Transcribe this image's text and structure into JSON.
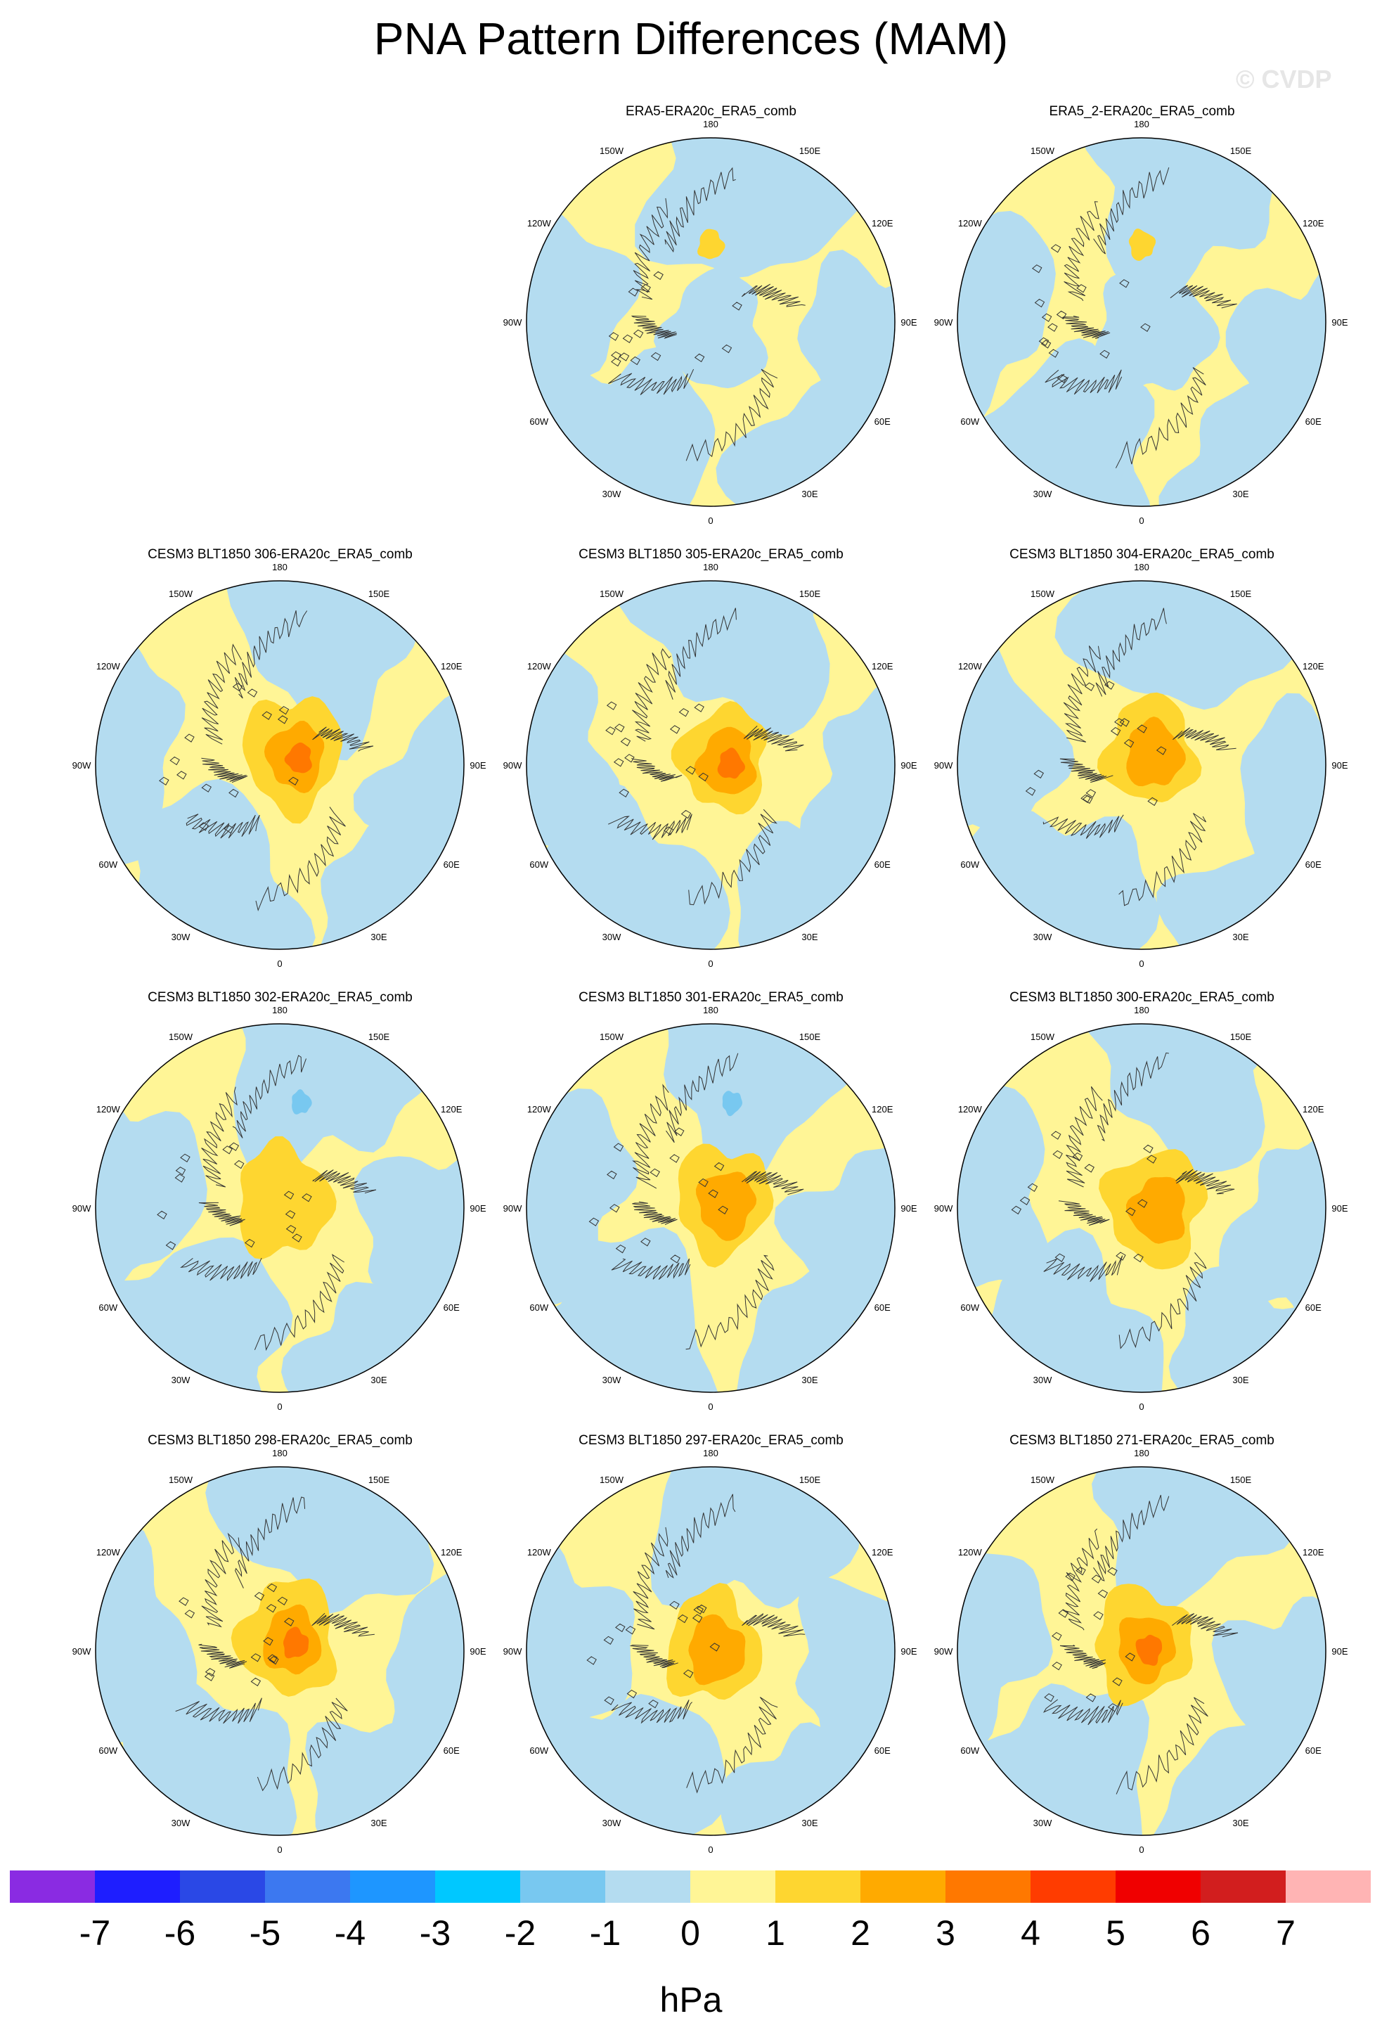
{
  "figure": {
    "title": "PNA Pattern Differences (MAM)",
    "watermark": "© CVDP",
    "unit": "hPa"
  },
  "longitude_labels": [
    "180",
    "150E",
    "120E",
    "90E",
    "60E",
    "30E",
    "0",
    "30W",
    "60W",
    "90W",
    "120W",
    "150W"
  ],
  "panels": [
    {
      "title": "ERA5-ERA20c_ERA5_comb",
      "strength": 0.5,
      "variant": "obs"
    },
    {
      "title": "ERA5_2-ERA20c_ERA5_comb",
      "strength": 0.5,
      "variant": "obs2"
    },
    {
      "title": "CESM3 BLT1850 306-ERA20c_ERA5_comb",
      "strength": 4.0,
      "variant": "m1"
    },
    {
      "title": "CESM3 BLT1850 305-ERA20c_ERA5_comb",
      "strength": 4.0,
      "variant": "m2"
    },
    {
      "title": "CESM3 BLT1850 304-ERA20c_ERA5_comb",
      "strength": 3.0,
      "variant": "m3"
    },
    {
      "title": "CESM3 BLT1850 302-ERA20c_ERA5_comb",
      "strength": 2.0,
      "variant": "m4"
    },
    {
      "title": "CESM3 BLT1850 301-ERA20c_ERA5_comb",
      "strength": 3.0,
      "variant": "m5"
    },
    {
      "title": "CESM3 BLT1850 300-ERA20c_ERA5_comb",
      "strength": 3.0,
      "variant": "m6"
    },
    {
      "title": "CESM3 BLT1850 298-ERA20c_ERA5_comb",
      "strength": 4.0,
      "variant": "m7"
    },
    {
      "title": "CESM3 BLT1850 297-ERA20c_ERA5_comb",
      "strength": 3.0,
      "variant": "m8"
    },
    {
      "title": "CESM3 BLT1850 271-ERA20c_ERA5_comb",
      "strength": 4.0,
      "variant": "m9"
    }
  ],
  "colorbar": {
    "colors": [
      "#8a2be2",
      "#1e1eff",
      "#2a48e6",
      "#3c78f0",
      "#1e96ff",
      "#00c8ff",
      "#78c8f0",
      "#b4dcf0",
      "#fff596",
      "#fed630",
      "#ffaa00",
      "#ff7800",
      "#ff3c00",
      "#f00000",
      "#d21e1e",
      "#ffb4b4"
    ],
    "labels": [
      "-7",
      "-6",
      "-5",
      "-4",
      "-3",
      "-2",
      "-1",
      "0",
      "1",
      "2",
      "3",
      "4",
      "5",
      "6",
      "7"
    ]
  },
  "colors": {
    "neg1": "#b4dcf0",
    "neg2": "#78c8f0",
    "pos1": "#fff596",
    "pos2": "#fed630",
    "pos3": "#ffaa00",
    "pos4": "#ff7800"
  }
}
